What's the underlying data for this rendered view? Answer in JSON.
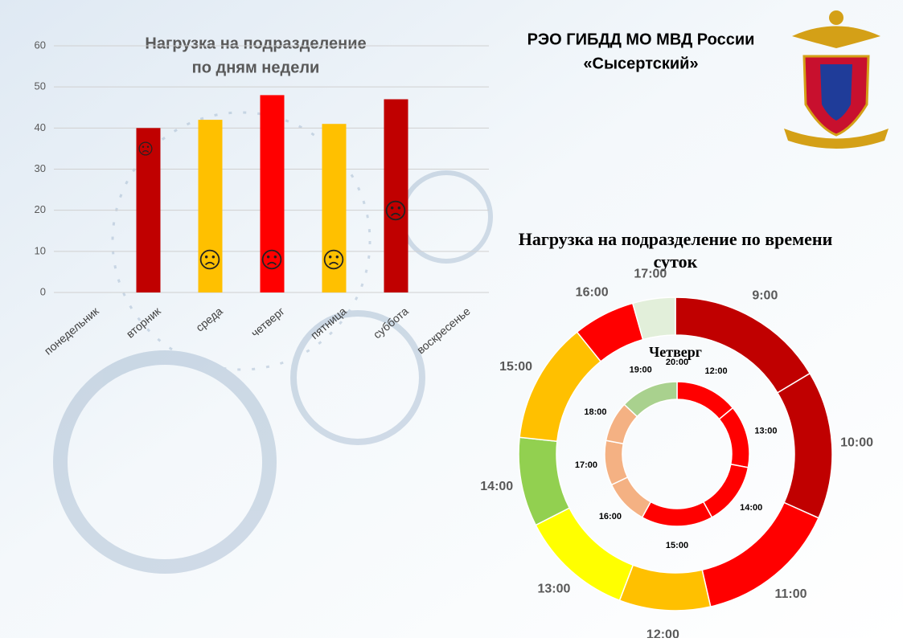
{
  "header": {
    "lines": [
      "РЭО ГИБДД МО МВД России",
      "«Сысертский»"
    ]
  },
  "chart_data": [
    {
      "type": "bar",
      "title": [
        "Нагрузка на подразделение",
        "по дням недели"
      ],
      "categories": [
        "понедельник",
        "вторник",
        "среда",
        "четверг",
        "пятница",
        "суббота",
        "воскресенье"
      ],
      "values": [
        0,
        40,
        42,
        48,
        41,
        47,
        0
      ],
      "colors": [
        "#c00000",
        "#c00000",
        "#ffc000",
        "#ff0000",
        "#ffc000",
        "#c00000",
        "#c00000"
      ],
      "ylim": [
        0,
        60
      ],
      "yticks": [
        0,
        10,
        20,
        30,
        40,
        50,
        60
      ],
      "grid": true
    },
    {
      "type": "donut",
      "title": [
        "Нагрузка на подразделение по времени",
        "суток"
      ],
      "categories": [
        "9:00",
        "10:00",
        "11:00",
        "12:00",
        "13:00",
        "14:00",
        "15:00",
        "16:00",
        "17:00"
      ],
      "values": [
        16.4,
        15.3,
        14.7,
        9.4,
        11.7,
        9.2,
        12.5,
        6.4,
        4.4
      ],
      "colors": [
        "#c00000",
        "#c00000",
        "#ff0000",
        "#ffc000",
        "#ffff00",
        "#92d050",
        "#ffc000",
        "#ff0000",
        "#e2efda"
      ]
    },
    {
      "type": "donut",
      "title": [
        "Четверг"
      ],
      "categories": [
        "12:00",
        "13:00",
        "14:00",
        "15:00",
        "16:00",
        "17:00",
        "18:00",
        "19:00",
        "20:00"
      ],
      "values": [
        14,
        14,
        14,
        16,
        10,
        10,
        9,
        13,
        0
      ],
      "colors": [
        "#ff0000",
        "#ff0000",
        "#ff0000",
        "#ff0000",
        "#f4b183",
        "#f4b183",
        "#f4b183",
        "#a9d18e",
        "#a9d18e"
      ]
    }
  ]
}
